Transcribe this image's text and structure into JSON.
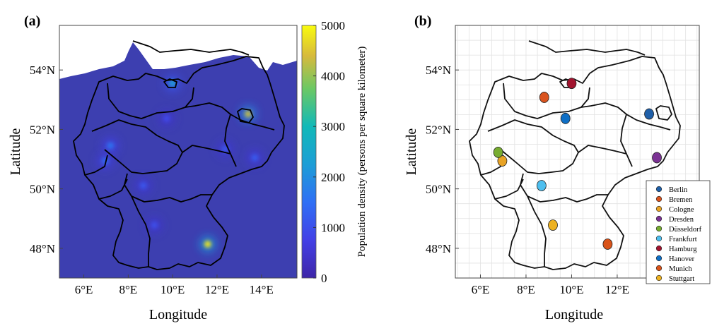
{
  "panel_a": {
    "label": "(a)",
    "xlabel": "Longitude",
    "ylabel": "Latitude",
    "xticks": [
      "6°E",
      "8°E",
      "10°E",
      "12°E",
      "14°E"
    ],
    "yticks": [
      "48°N",
      "50°N",
      "52°N",
      "54°N"
    ],
    "colorbar": {
      "label": "Population density (persons per square kilometer)",
      "ticks": [
        "0",
        "1000",
        "2000",
        "3000",
        "4000",
        "5000"
      ],
      "colormap": "parula",
      "range": [
        0,
        5000
      ]
    },
    "background_color": "#3d3fb0"
  },
  "panel_b": {
    "label": "(b)",
    "xlabel": "Longitude",
    "ylabel": "Latitude",
    "xticks": [
      "6°E",
      "8°E",
      "10°E",
      "12°E"
    ],
    "yticks": [
      "48°N",
      "50°N",
      "52°N",
      "54°N"
    ],
    "grid": true
  },
  "chart_data": [
    {
      "type": "heatmap",
      "title": "",
      "xlabel": "Longitude",
      "ylabel": "Latitude",
      "xlim": [
        4.9,
        15.6
      ],
      "ylim": [
        47.0,
        55.5
      ],
      "colorbar_range": [
        0,
        5000
      ],
      "hotspots": [
        {
          "lon": 13.4,
          "lat": 52.52,
          "value": 4300
        },
        {
          "lon": 10.0,
          "lat": 53.55,
          "value": 2300
        },
        {
          "lon": 7.2,
          "lat": 51.45,
          "value": 1600
        },
        {
          "lon": 11.58,
          "lat": 48.14,
          "value": 4800
        },
        {
          "lon": 8.68,
          "lat": 50.11,
          "value": 1100
        },
        {
          "lon": 9.18,
          "lat": 48.78,
          "value": 1000
        },
        {
          "lon": 13.7,
          "lat": 51.05,
          "value": 1200
        },
        {
          "lon": 12.37,
          "lat": 51.34,
          "value": 1100
        },
        {
          "lon": 9.73,
          "lat": 52.37,
          "value": 900
        },
        {
          "lon": 6.96,
          "lat": 50.94,
          "value": 1400
        }
      ]
    },
    {
      "type": "scatter",
      "title": "",
      "xlabel": "Longitude",
      "ylabel": "Latitude",
      "xlim": [
        4.9,
        15.6
      ],
      "ylim": [
        47.0,
        55.5
      ],
      "legend_position": "bottom-right",
      "cities": [
        {
          "name": "Berlin",
          "lon": 13.4,
          "lat": 52.52,
          "color": "#1f5fa8"
        },
        {
          "name": "Bremen",
          "lon": 8.8,
          "lat": 53.08,
          "color": "#d9531e"
        },
        {
          "name": "Cologne",
          "lon": 6.96,
          "lat": 50.94,
          "color": "#e8a325"
        },
        {
          "name": "Dresden",
          "lon": 13.74,
          "lat": 51.05,
          "color": "#7b3294"
        },
        {
          "name": "Düsseldorf",
          "lon": 6.78,
          "lat": 51.23,
          "color": "#77ac30"
        },
        {
          "name": "Frankfurt",
          "lon": 8.68,
          "lat": 50.11,
          "color": "#4dbeee"
        },
        {
          "name": "Hamburg",
          "lon": 10.0,
          "lat": 53.55,
          "color": "#a2142f"
        },
        {
          "name": "Hanover",
          "lon": 9.73,
          "lat": 52.37,
          "color": "#0f6fc6"
        },
        {
          "name": "Munich",
          "lon": 11.58,
          "lat": 48.14,
          "color": "#d95319"
        },
        {
          "name": "Stuttgart",
          "lon": 9.18,
          "lat": 48.78,
          "color": "#edb120"
        }
      ]
    }
  ]
}
